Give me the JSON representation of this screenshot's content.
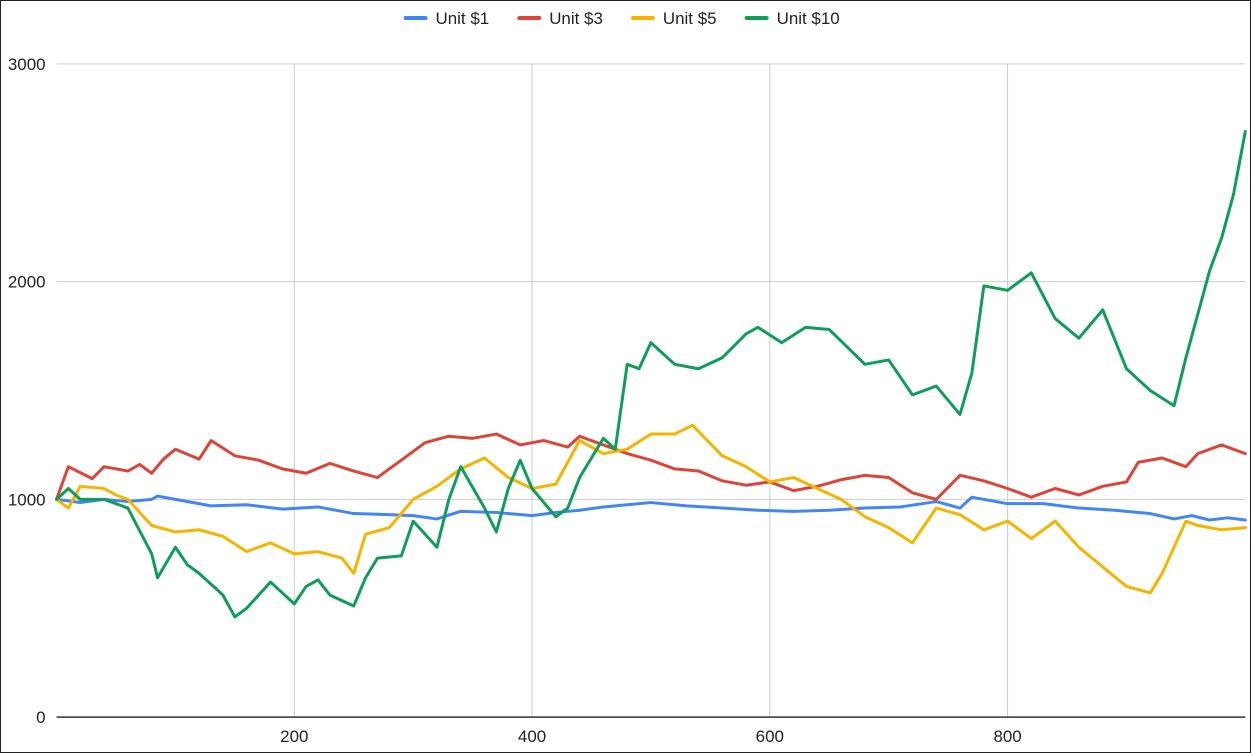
{
  "chart_data": {
    "type": "line",
    "title": "",
    "xlabel": "",
    "ylabel": "",
    "xlim": [
      0,
      1000
    ],
    "ylim": [
      0,
      3000
    ],
    "x_ticks": [
      200,
      400,
      600,
      800
    ],
    "y_ticks": [
      0,
      1000,
      2000,
      3000
    ],
    "grid": true,
    "legend_position": "top-center",
    "series": [
      {
        "name": "Unit $1",
        "color": "#4285f4",
        "points": [
          [
            0,
            1000
          ],
          [
            20,
            985
          ],
          [
            40,
            1000
          ],
          [
            60,
            990
          ],
          [
            80,
            1000
          ],
          [
            85,
            1015
          ],
          [
            100,
            1000
          ],
          [
            130,
            970
          ],
          [
            160,
            975
          ],
          [
            190,
            955
          ],
          [
            220,
            965
          ],
          [
            250,
            935
          ],
          [
            280,
            930
          ],
          [
            300,
            925
          ],
          [
            320,
            910
          ],
          [
            340,
            945
          ],
          [
            370,
            940
          ],
          [
            400,
            925
          ],
          [
            420,
            940
          ],
          [
            440,
            950
          ],
          [
            460,
            965
          ],
          [
            480,
            975
          ],
          [
            500,
            985
          ],
          [
            530,
            970
          ],
          [
            560,
            960
          ],
          [
            590,
            950
          ],
          [
            620,
            945
          ],
          [
            650,
            950
          ],
          [
            680,
            960
          ],
          [
            710,
            965
          ],
          [
            740,
            990
          ],
          [
            760,
            960
          ],
          [
            770,
            1010
          ],
          [
            800,
            980
          ],
          [
            830,
            980
          ],
          [
            860,
            960
          ],
          [
            890,
            950
          ],
          [
            920,
            935
          ],
          [
            940,
            910
          ],
          [
            955,
            925
          ],
          [
            970,
            905
          ],
          [
            985,
            915
          ],
          [
            1000,
            905
          ]
        ]
      },
      {
        "name": "Unit $3",
        "color": "#db4437",
        "points": [
          [
            0,
            1000
          ],
          [
            10,
            1150
          ],
          [
            30,
            1095
          ],
          [
            40,
            1150
          ],
          [
            60,
            1130
          ],
          [
            70,
            1160
          ],
          [
            80,
            1120
          ],
          [
            90,
            1185
          ],
          [
            100,
            1230
          ],
          [
            120,
            1185
          ],
          [
            130,
            1270
          ],
          [
            150,
            1200
          ],
          [
            170,
            1180
          ],
          [
            190,
            1140
          ],
          [
            210,
            1120
          ],
          [
            230,
            1165
          ],
          [
            250,
            1130
          ],
          [
            270,
            1100
          ],
          [
            290,
            1180
          ],
          [
            310,
            1260
          ],
          [
            330,
            1290
          ],
          [
            350,
            1280
          ],
          [
            370,
            1300
          ],
          [
            390,
            1250
          ],
          [
            410,
            1270
          ],
          [
            430,
            1240
          ],
          [
            440,
            1290
          ],
          [
            460,
            1250
          ],
          [
            480,
            1210
          ],
          [
            500,
            1180
          ],
          [
            520,
            1140
          ],
          [
            540,
            1130
          ],
          [
            560,
            1085
          ],
          [
            580,
            1065
          ],
          [
            600,
            1080
          ],
          [
            620,
            1040
          ],
          [
            640,
            1060
          ],
          [
            660,
            1090
          ],
          [
            680,
            1110
          ],
          [
            700,
            1100
          ],
          [
            720,
            1030
          ],
          [
            740,
            1000
          ],
          [
            760,
            1110
          ],
          [
            780,
            1085
          ],
          [
            800,
            1050
          ],
          [
            810,
            1030
          ],
          [
            820,
            1010
          ],
          [
            840,
            1050
          ],
          [
            860,
            1020
          ],
          [
            880,
            1060
          ],
          [
            900,
            1080
          ],
          [
            910,
            1170
          ],
          [
            930,
            1190
          ],
          [
            950,
            1150
          ],
          [
            960,
            1210
          ],
          [
            980,
            1250
          ],
          [
            1000,
            1210
          ]
        ]
      },
      {
        "name": "Unit $5",
        "color": "#f4b400",
        "points": [
          [
            0,
            1000
          ],
          [
            10,
            960
          ],
          [
            20,
            1060
          ],
          [
            40,
            1050
          ],
          [
            50,
            1020
          ],
          [
            60,
            1000
          ],
          [
            80,
            880
          ],
          [
            100,
            850
          ],
          [
            120,
            860
          ],
          [
            140,
            830
          ],
          [
            160,
            760
          ],
          [
            180,
            800
          ],
          [
            200,
            750
          ],
          [
            220,
            760
          ],
          [
            240,
            730
          ],
          [
            250,
            660
          ],
          [
            260,
            840
          ],
          [
            280,
            870
          ],
          [
            300,
            1000
          ],
          [
            320,
            1060
          ],
          [
            340,
            1140
          ],
          [
            360,
            1190
          ],
          [
            380,
            1100
          ],
          [
            400,
            1050
          ],
          [
            420,
            1070
          ],
          [
            440,
            1270
          ],
          [
            460,
            1210
          ],
          [
            480,
            1230
          ],
          [
            500,
            1300
          ],
          [
            520,
            1300
          ],
          [
            535,
            1340
          ],
          [
            560,
            1200
          ],
          [
            580,
            1150
          ],
          [
            600,
            1080
          ],
          [
            620,
            1100
          ],
          [
            640,
            1050
          ],
          [
            660,
            1000
          ],
          [
            680,
            920
          ],
          [
            700,
            870
          ],
          [
            720,
            800
          ],
          [
            740,
            960
          ],
          [
            760,
            930
          ],
          [
            780,
            860
          ],
          [
            800,
            900
          ],
          [
            820,
            820
          ],
          [
            840,
            900
          ],
          [
            860,
            780
          ],
          [
            880,
            690
          ],
          [
            900,
            600
          ],
          [
            920,
            570
          ],
          [
            930,
            660
          ],
          [
            940,
            780
          ],
          [
            950,
            900
          ],
          [
            960,
            880
          ],
          [
            980,
            860
          ],
          [
            1000,
            870
          ]
        ]
      },
      {
        "name": "Unit $10",
        "color": "#0f9d58",
        "points": [
          [
            0,
            1000
          ],
          [
            10,
            1050
          ],
          [
            20,
            1000
          ],
          [
            40,
            1000
          ],
          [
            60,
            960
          ],
          [
            80,
            750
          ],
          [
            85,
            640
          ],
          [
            100,
            780
          ],
          [
            110,
            700
          ],
          [
            120,
            660
          ],
          [
            140,
            560
          ],
          [
            150,
            460
          ],
          [
            160,
            500
          ],
          [
            170,
            560
          ],
          [
            180,
            620
          ],
          [
            200,
            520
          ],
          [
            210,
            600
          ],
          [
            220,
            630
          ],
          [
            230,
            560
          ],
          [
            250,
            510
          ],
          [
            260,
            640
          ],
          [
            270,
            730
          ],
          [
            290,
            740
          ],
          [
            300,
            900
          ],
          [
            310,
            840
          ],
          [
            320,
            780
          ],
          [
            330,
            1000
          ],
          [
            340,
            1150
          ],
          [
            360,
            960
          ],
          [
            370,
            850
          ],
          [
            380,
            1050
          ],
          [
            390,
            1180
          ],
          [
            400,
            1050
          ],
          [
            420,
            920
          ],
          [
            430,
            960
          ],
          [
            440,
            1100
          ],
          [
            460,
            1280
          ],
          [
            470,
            1230
          ],
          [
            480,
            1620
          ],
          [
            490,
            1600
          ],
          [
            500,
            1720
          ],
          [
            520,
            1620
          ],
          [
            540,
            1600
          ],
          [
            560,
            1650
          ],
          [
            580,
            1760
          ],
          [
            590,
            1790
          ],
          [
            610,
            1720
          ],
          [
            630,
            1790
          ],
          [
            650,
            1780
          ],
          [
            680,
            1620
          ],
          [
            700,
            1640
          ],
          [
            720,
            1480
          ],
          [
            740,
            1520
          ],
          [
            760,
            1390
          ],
          [
            770,
            1580
          ],
          [
            780,
            1980
          ],
          [
            800,
            1960
          ],
          [
            820,
            2040
          ],
          [
            840,
            1830
          ],
          [
            860,
            1740
          ],
          [
            880,
            1870
          ],
          [
            900,
            1600
          ],
          [
            920,
            1500
          ],
          [
            940,
            1430
          ],
          [
            950,
            1650
          ],
          [
            960,
            1850
          ],
          [
            970,
            2050
          ],
          [
            980,
            2200
          ],
          [
            990,
            2400
          ],
          [
            1000,
            2690
          ]
        ]
      }
    ]
  }
}
